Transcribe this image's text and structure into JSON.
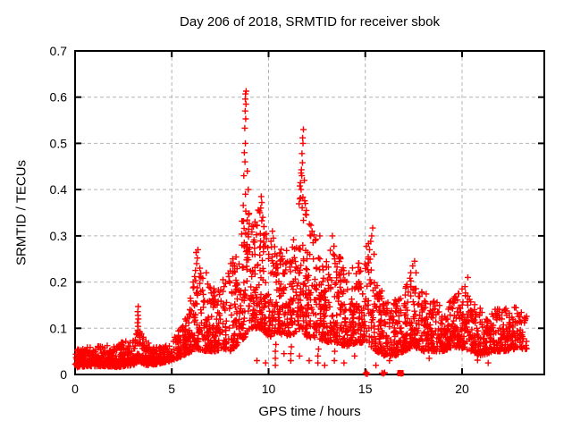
{
  "chart_data": {
    "type": "scatter",
    "title": "Day 206 of 2018, SRMTID for receiver sbok",
    "xlabel": "GPS time / hours",
    "ylabel": "SRMTID / TECUs",
    "xlim": [
      0,
      24.25
    ],
    "ylim": [
      0,
      0.7
    ],
    "xticks": [
      0,
      5,
      10,
      15,
      20
    ],
    "yticks": [
      0,
      0.1,
      0.2,
      0.3,
      0.4,
      0.5,
      0.6,
      0.7
    ],
    "grid": true,
    "grid_color": "#b4b4b4",
    "legend": "none",
    "marker": "plus",
    "marker_color": "#ff0000",
    "text_color": "#000000",
    "background": "#ffffff",
    "seed": 20180206,
    "skew": 1.7,
    "band_knots": [
      [
        0,
        0.015,
        0.055
      ],
      [
        0.7,
        0.018,
        0.06
      ],
      [
        1.5,
        0.018,
        0.062
      ],
      [
        2.2,
        0.016,
        0.068
      ],
      [
        3,
        0.02,
        0.08
      ],
      [
        3.3,
        0.028,
        0.1
      ],
      [
        3.7,
        0.02,
        0.072
      ],
      [
        4.2,
        0.022,
        0.06
      ],
      [
        4.8,
        0.028,
        0.065
      ],
      [
        5.3,
        0.035,
        0.09
      ],
      [
        5.8,
        0.045,
        0.14
      ],
      [
        6.3,
        0.055,
        0.23
      ],
      [
        6.8,
        0.05,
        0.21
      ],
      [
        7.3,
        0.05,
        0.18
      ],
      [
        7.7,
        0.055,
        0.2
      ],
      [
        8.1,
        0.05,
        0.24
      ],
      [
        8.5,
        0.07,
        0.28
      ],
      [
        8.8,
        0.08,
        0.42
      ],
      [
        9.2,
        0.1,
        0.33
      ],
      [
        9.6,
        0.1,
        0.37
      ],
      [
        10,
        0.08,
        0.3
      ],
      [
        10.5,
        0.09,
        0.27
      ],
      [
        11,
        0.08,
        0.28
      ],
      [
        11.4,
        0.09,
        0.32
      ],
      [
        11.7,
        0.1,
        0.45
      ],
      [
        12,
        0.08,
        0.35
      ],
      [
        12.4,
        0.08,
        0.3
      ],
      [
        13,
        0.07,
        0.25
      ],
      [
        13.4,
        0.07,
        0.29
      ],
      [
        14,
        0.06,
        0.22
      ],
      [
        14.6,
        0.07,
        0.24
      ],
      [
        15.2,
        0.06,
        0.29
      ],
      [
        15.6,
        0.05,
        0.2
      ],
      [
        16,
        0.04,
        0.17
      ],
      [
        16.5,
        0.04,
        0.16
      ],
      [
        17,
        0.05,
        0.19
      ],
      [
        17.5,
        0.06,
        0.22
      ],
      [
        18,
        0.05,
        0.18
      ],
      [
        18.6,
        0.05,
        0.16
      ],
      [
        19,
        0.05,
        0.15
      ],
      [
        19.6,
        0.06,
        0.17
      ],
      [
        20.1,
        0.055,
        0.19
      ],
      [
        20.5,
        0.05,
        0.17
      ],
      [
        21,
        0.04,
        0.14
      ],
      [
        21.6,
        0.05,
        0.14
      ],
      [
        22.2,
        0.05,
        0.145
      ],
      [
        22.8,
        0.055,
        0.15
      ],
      [
        23.35,
        0.055,
        0.13
      ]
    ],
    "density_segments": [
      [
        0,
        1,
        120
      ],
      [
        1,
        2,
        120
      ],
      [
        2,
        3,
        120
      ],
      [
        3,
        4,
        130
      ],
      [
        4,
        5,
        110
      ],
      [
        5,
        6,
        110
      ],
      [
        6,
        7,
        115
      ],
      [
        7,
        8,
        115
      ],
      [
        8,
        9,
        135
      ],
      [
        9,
        10,
        140
      ],
      [
        10,
        11,
        130
      ],
      [
        11,
        12,
        140
      ],
      [
        12,
        13,
        130
      ],
      [
        13,
        14,
        125
      ],
      [
        14,
        15,
        120
      ],
      [
        15,
        16,
        115
      ],
      [
        16,
        17,
        110
      ],
      [
        17,
        18,
        120
      ],
      [
        18,
        19,
        115
      ],
      [
        19,
        20,
        115
      ],
      [
        20,
        21,
        115
      ],
      [
        21,
        22,
        110
      ],
      [
        22,
        23.35,
        130
      ]
    ],
    "extra_points": [
      [
        3.22,
        0.088
      ],
      [
        3.24,
        0.096
      ],
      [
        3.26,
        0.104
      ],
      [
        3.23,
        0.112
      ],
      [
        3.27,
        0.12
      ],
      [
        3.25,
        0.128
      ],
      [
        3.24,
        0.136
      ],
      [
        3.26,
        0.147
      ],
      [
        5.9,
        0.13
      ],
      [
        6.1,
        0.2
      ],
      [
        6.18,
        0.212
      ],
      [
        6.22,
        0.225
      ],
      [
        6.28,
        0.24
      ],
      [
        6.32,
        0.252
      ],
      [
        6.26,
        0.264
      ],
      [
        6.35,
        0.27
      ],
      [
        6.45,
        0.23
      ],
      [
        6.6,
        0.208
      ],
      [
        6.78,
        0.22
      ],
      [
        7.65,
        0.205
      ],
      [
        7.7,
        0.19
      ],
      [
        8.05,
        0.24
      ],
      [
        8.15,
        0.25
      ],
      [
        8.25,
        0.235
      ],
      [
        8.72,
        0.43
      ],
      [
        8.78,
        0.46
      ],
      [
        8.75,
        0.48
      ],
      [
        8.8,
        0.5
      ],
      [
        8.77,
        0.533
      ],
      [
        8.82,
        0.553
      ],
      [
        8.79,
        0.57
      ],
      [
        8.83,
        0.585
      ],
      [
        8.8,
        0.596
      ],
      [
        8.81,
        0.607
      ],
      [
        8.84,
        0.613
      ],
      [
        8.9,
        0.44
      ],
      [
        8.95,
        0.4
      ],
      [
        9.3,
        0.33
      ],
      [
        9.55,
        0.35
      ],
      [
        9.6,
        0.36
      ],
      [
        9.65,
        0.372
      ],
      [
        9.62,
        0.385
      ],
      [
        9.7,
        0.34
      ],
      [
        10.2,
        0.31
      ],
      [
        10.25,
        0.295
      ],
      [
        11.62,
        0.38
      ],
      [
        11.68,
        0.4
      ],
      [
        11.65,
        0.415
      ],
      [
        11.72,
        0.43
      ],
      [
        11.7,
        0.443
      ],
      [
        11.75,
        0.458
      ],
      [
        11.73,
        0.478
      ],
      [
        11.78,
        0.5
      ],
      [
        11.76,
        0.512
      ],
      [
        11.8,
        0.53
      ],
      [
        11.85,
        0.42
      ],
      [
        11.9,
        0.37
      ],
      [
        11.95,
        0.345
      ],
      [
        12.18,
        0.3
      ],
      [
        12.25,
        0.31
      ],
      [
        12.3,
        0.285
      ],
      [
        12.65,
        0.3
      ],
      [
        13.3,
        0.3
      ],
      [
        13.35,
        0.26
      ],
      [
        13.42,
        0.25
      ],
      [
        15.15,
        0.25
      ],
      [
        15.22,
        0.27
      ],
      [
        15.28,
        0.288
      ],
      [
        15.33,
        0.3
      ],
      [
        15.38,
        0.317
      ],
      [
        15.45,
        0.26
      ],
      [
        17.35,
        0.22
      ],
      [
        17.45,
        0.235
      ],
      [
        17.55,
        0.245
      ],
      [
        17.62,
        0.22
      ],
      [
        20.0,
        0.185
      ],
      [
        20.15,
        0.19
      ],
      [
        20.3,
        0.21
      ],
      [
        9.4,
        0.03
      ],
      [
        9.85,
        0.025
      ],
      [
        10.35,
        0.02
      ],
      [
        10.35,
        0.035
      ],
      [
        10.35,
        0.05
      ],
      [
        10.38,
        0.065
      ],
      [
        10.8,
        0.045
      ],
      [
        11.15,
        0.03
      ],
      [
        11.15,
        0.045
      ],
      [
        11.18,
        0.06
      ],
      [
        11.6,
        0.04
      ],
      [
        12.1,
        0.03
      ],
      [
        12.55,
        0.025
      ],
      [
        12.55,
        0.04
      ],
      [
        12.58,
        0.055
      ],
      [
        12.9,
        0.02
      ],
      [
        13.4,
        0.03
      ],
      [
        13.42,
        0.05
      ],
      [
        13.9,
        0.025
      ],
      [
        14.45,
        0.04
      ],
      [
        15.55,
        0.02
      ],
      [
        16.25,
        0.03
      ],
      [
        18.3,
        0.035
      ],
      [
        20.8,
        0.031
      ],
      [
        21.35,
        0.025
      ]
    ],
    "zero_points": [
      [
        15.02,
        0.002
      ],
      [
        15.06,
        0.004
      ],
      [
        15.1,
        0.001
      ],
      [
        15.86,
        0.003
      ],
      [
        15.94,
        0.002
      ],
      [
        16.0,
        0.004
      ],
      [
        16.78,
        0.003
      ],
      [
        16.86,
        0.002
      ]
    ],
    "zero_square": {
      "x": 16.82,
      "size": 7
    }
  }
}
